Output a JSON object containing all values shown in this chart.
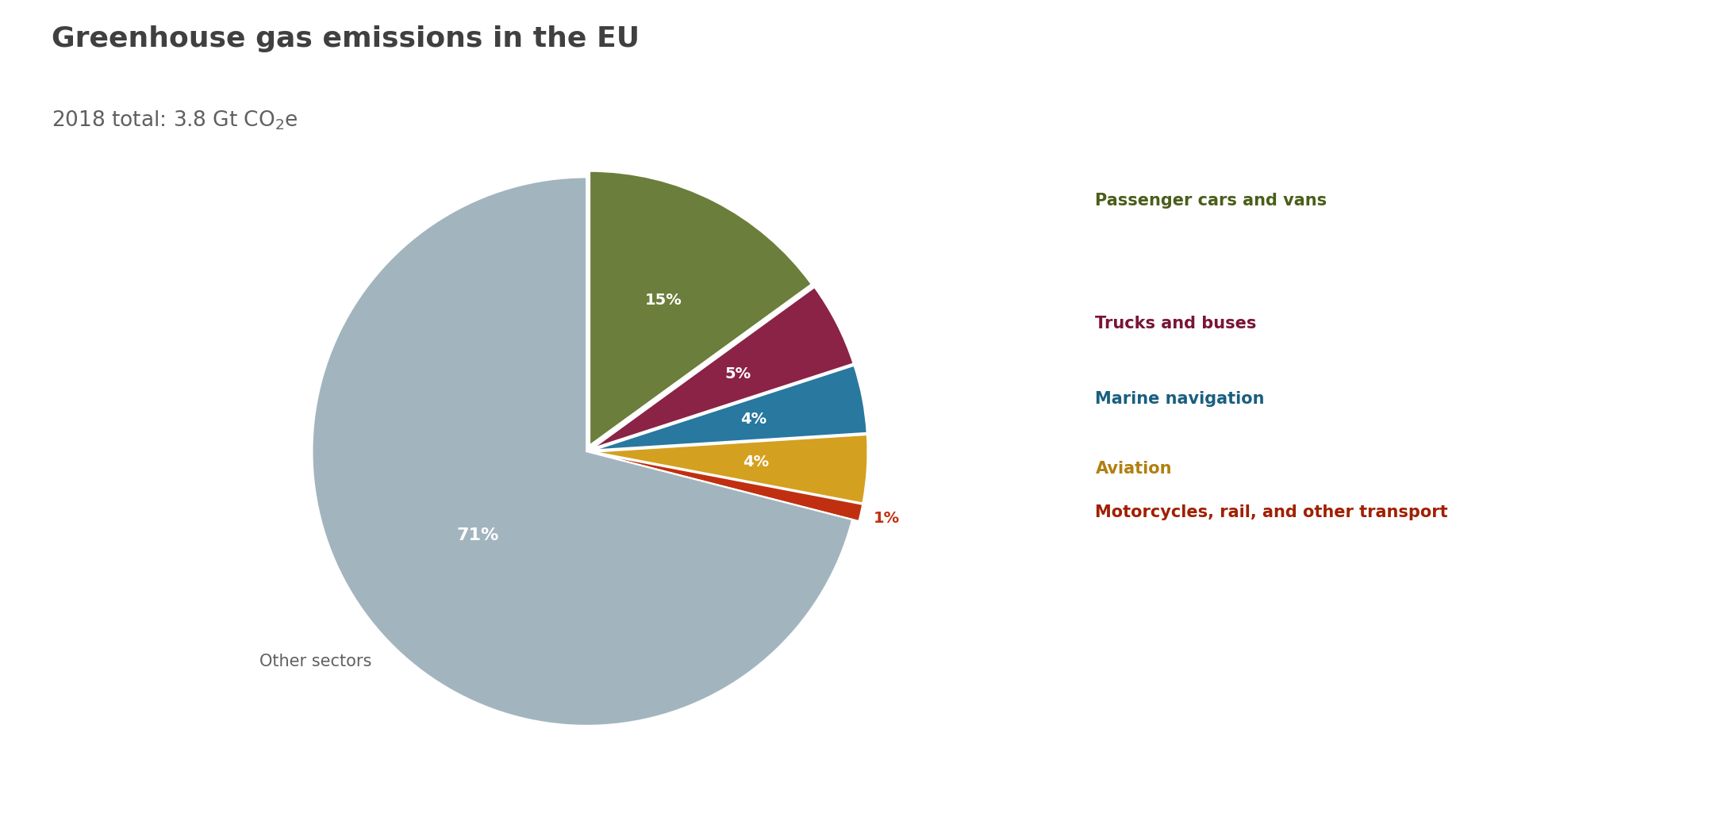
{
  "title": "Greenhouse gas emissions in the EU",
  "slices": [
    {
      "label": "Passenger cars and vans",
      "value": 15,
      "color": "#6b7e3b",
      "pct_label": "15%",
      "ext_label_color": "#4a5e1a"
    },
    {
      "label": "Trucks and buses",
      "value": 5,
      "color": "#8b2346",
      "pct_label": "5%",
      "ext_label_color": "#7a1535"
    },
    {
      "label": "Marine navigation",
      "value": 4,
      "color": "#2878a0",
      "pct_label": "4%",
      "ext_label_color": "#1a5f80"
    },
    {
      "label": "Aviation",
      "value": 4,
      "color": "#d4a020",
      "pct_label": "4%",
      "ext_label_color": "#b08010"
    },
    {
      "label": "Motorcycles, rail, and other transport",
      "value": 1,
      "color": "#c03010",
      "pct_label": "1%",
      "ext_label_color": "#a02000"
    },
    {
      "label": "Other sectors",
      "value": 71,
      "color": "#a2b5be",
      "pct_label": "71%",
      "ext_label_color": "#606060"
    }
  ],
  "background_color": "#ffffff",
  "title_color": "#404040",
  "subtitle_color": "#606060",
  "title_fontsize": 26,
  "subtitle_fontsize": 19,
  "pct_fontsize": 14,
  "other_label_fontsize": 15,
  "ext_label_fontsize": 15
}
